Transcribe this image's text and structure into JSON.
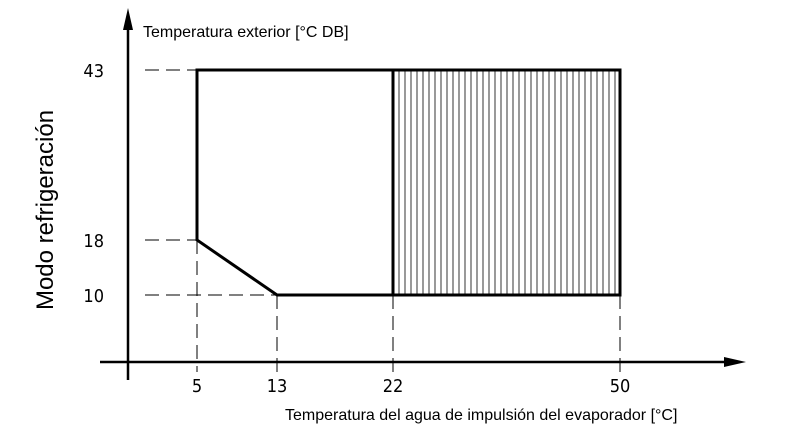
{
  "title": "Temperatura exterior [°C DB]",
  "y_label": "Modo refrigeración",
  "x_label": "Temperatura del agua de impulsión del evaporador [°C]",
  "x_ticks": [
    "5",
    "13",
    "22",
    "50"
  ],
  "y_ticks": [
    "43",
    "18",
    "10"
  ]
}
